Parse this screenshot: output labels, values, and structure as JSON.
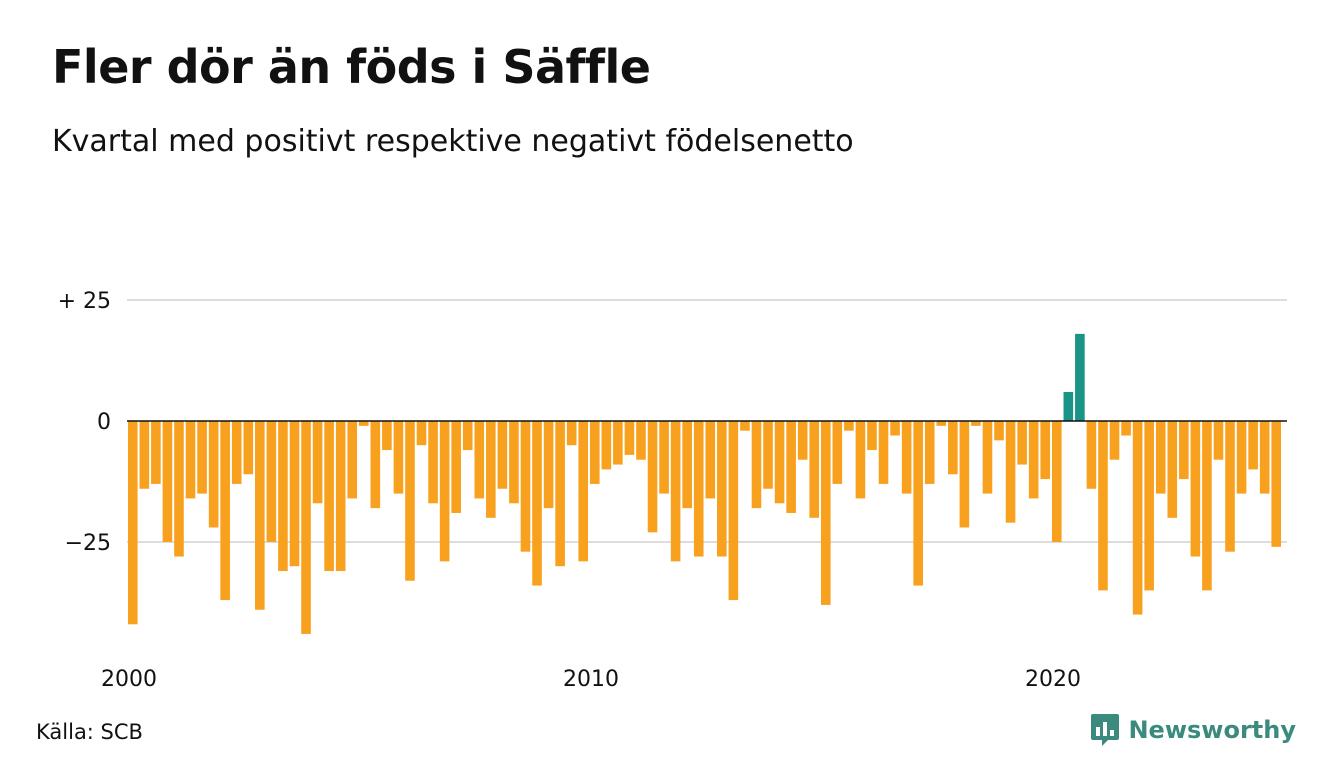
{
  "title": "Fler dör än föds i Säffle",
  "subtitle": "Kvartal med positivt respektive negativt födelsenetto",
  "source": "Källa: SCB",
  "brand": "Newsworthy",
  "colors": {
    "negative": "#f7a11f",
    "positive": "#1a9486",
    "grid": "#dddddd",
    "zero": "#111111",
    "brand": "#3a8a7d"
  },
  "chart_data": {
    "type": "bar",
    "title": "Fler dör än föds i Säffle",
    "subtitle": "Kvartal med positivt respektive negativt födelsenetto",
    "xlabel": "",
    "ylabel": "",
    "x_start_year": 2000,
    "periods_per_year": 4,
    "x_ticks": [
      {
        "year": 2000,
        "label": "2000"
      },
      {
        "year": 2010,
        "label": "2010"
      },
      {
        "year": 2020,
        "label": "2020"
      }
    ],
    "y_ticks": [
      {
        "value": 25,
        "label": "+ 25"
      },
      {
        "value": 0,
        "label": "0"
      },
      {
        "value": -25,
        "label": "−25"
      }
    ],
    "ylim": [
      -45,
      30
    ],
    "grid": true,
    "values": [
      -42,
      -14,
      -13,
      -25,
      -28,
      -16,
      -15,
      -22,
      -37,
      -13,
      -11,
      -39,
      -25,
      -31,
      -30,
      -44,
      -17,
      -31,
      -31,
      -16,
      -1,
      -18,
      -6,
      -15,
      -33,
      -5,
      -17,
      -29,
      -19,
      -6,
      -16,
      -20,
      -14,
      -17,
      -27,
      -34,
      -18,
      -30,
      -5,
      -29,
      -13,
      -10,
      -9,
      -7,
      -8,
      -23,
      -15,
      -29,
      -18,
      -28,
      -16,
      -28,
      -37,
      -2,
      -18,
      -14,
      -17,
      -19,
      -8,
      -20,
      -38,
      -13,
      -2,
      -16,
      -6,
      -13,
      -3,
      -15,
      -34,
      -13,
      -1,
      -11,
      -22,
      -1,
      -15,
      -4,
      -21,
      -9,
      -16,
      -12,
      -25,
      6,
      18,
      -14,
      -35,
      -8,
      -3,
      -40,
      -35,
      -15,
      -20,
      -12,
      -28,
      -35,
      -8,
      -27,
      -15,
      -10,
      -15,
      -26
    ]
  }
}
